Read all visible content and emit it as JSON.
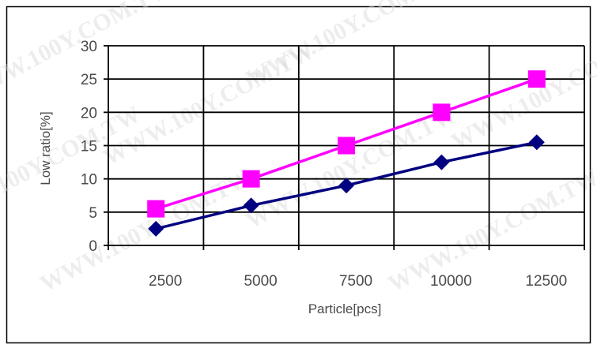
{
  "watermark": "WWW.100Y.COM.TW",
  "chart_data": {
    "type": "line",
    "title": "",
    "xlabel": "Particle[pcs]",
    "ylabel": "Low ratio[%]",
    "categories": [
      "2500",
      "5000",
      "7500",
      "10000",
      "12500"
    ],
    "yticks": [
      "0",
      "5",
      "10",
      "15",
      "20",
      "25",
      "30"
    ],
    "ylim": [
      0,
      30
    ],
    "grid": true,
    "legend": "none",
    "series": [
      {
        "color": "#ff00ff",
        "marker": "square",
        "values": [
          5.5,
          10,
          15,
          20,
          25
        ]
      },
      {
        "color": "#000080",
        "marker": "diamond",
        "values": [
          2.5,
          6,
          9,
          12.5,
          15.5
        ]
      }
    ]
  }
}
